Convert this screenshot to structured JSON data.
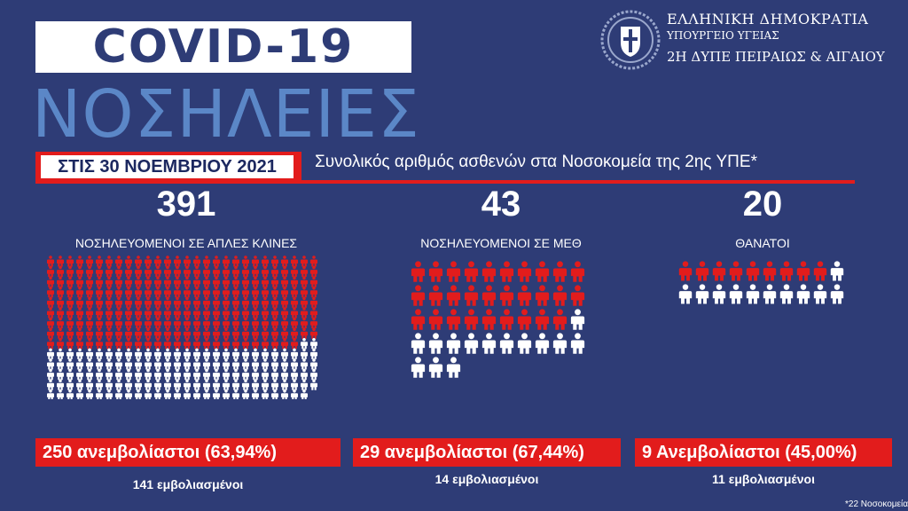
{
  "header": {
    "title": "COVID-19",
    "subtitle": "ΝΟΣΗΛΕΙΕΣ",
    "gov_line1": "ΕΛΛΗΝΙΚΗ ΔΗΜΟΚΡΑΤΙΑ",
    "gov_line2": "ΥΠΟΥΡΓΕΙΟ ΥΓΕΙΑΣ",
    "gov_line3": "2Η ΔΥΠΕ ΠΕΙΡΑΙΩΣ & ΑΙΓΑΙΟΥ",
    "emblem_icon": "greek-coat-of-arms-icon"
  },
  "banner": {
    "date": "ΣΤΙΣ 30 ΝΟΕΜΒΡΙΟΥ 2021",
    "topic": "Συνολικός αριθμός ασθενών στα Νοσοκομεία της 2ης ΥΠΕ*"
  },
  "colors": {
    "background": "#2e3c76",
    "accent_red": "#e21c1c",
    "subtitle_blue": "#5b87c7",
    "white": "#ffffff"
  },
  "panels": [
    {
      "total": "391",
      "caption": "ΝΟΣΗΛΕΥΟΜΕΝΟΙ ΣΕ ΑΠΛΕΣ ΚΛΙΝΕΣ",
      "unvaccinated_text": "250 ανεμβολίαστοι (63,94%)",
      "vaccinated_text": "141 εμβολιασμένοι",
      "count_total": 391,
      "count_unvaccinated": 250,
      "icon": "person-icon"
    },
    {
      "total": "43",
      "caption": "ΝΟΣΗΛΕΥΟΜΕΝΟΙ ΣΕ ΜΕΘ",
      "unvaccinated_text": "29 ανεμβολίαστοι (67,44%)",
      "vaccinated_text": "14 εμβολιασμένοι",
      "count_total": 43,
      "count_unvaccinated": 29,
      "icon": "person-icon"
    },
    {
      "total": "20",
      "caption": "ΘΑΝΑΤΟΙ",
      "unvaccinated_text": "9 Ανεμβολίαστοι (45,00%)",
      "vaccinated_text": "11 εμβολιασμένοι",
      "count_total": 20,
      "count_unvaccinated": 9,
      "icon": "person-icon"
    }
  ],
  "footnote": "*22 Νοσοκομεία"
}
